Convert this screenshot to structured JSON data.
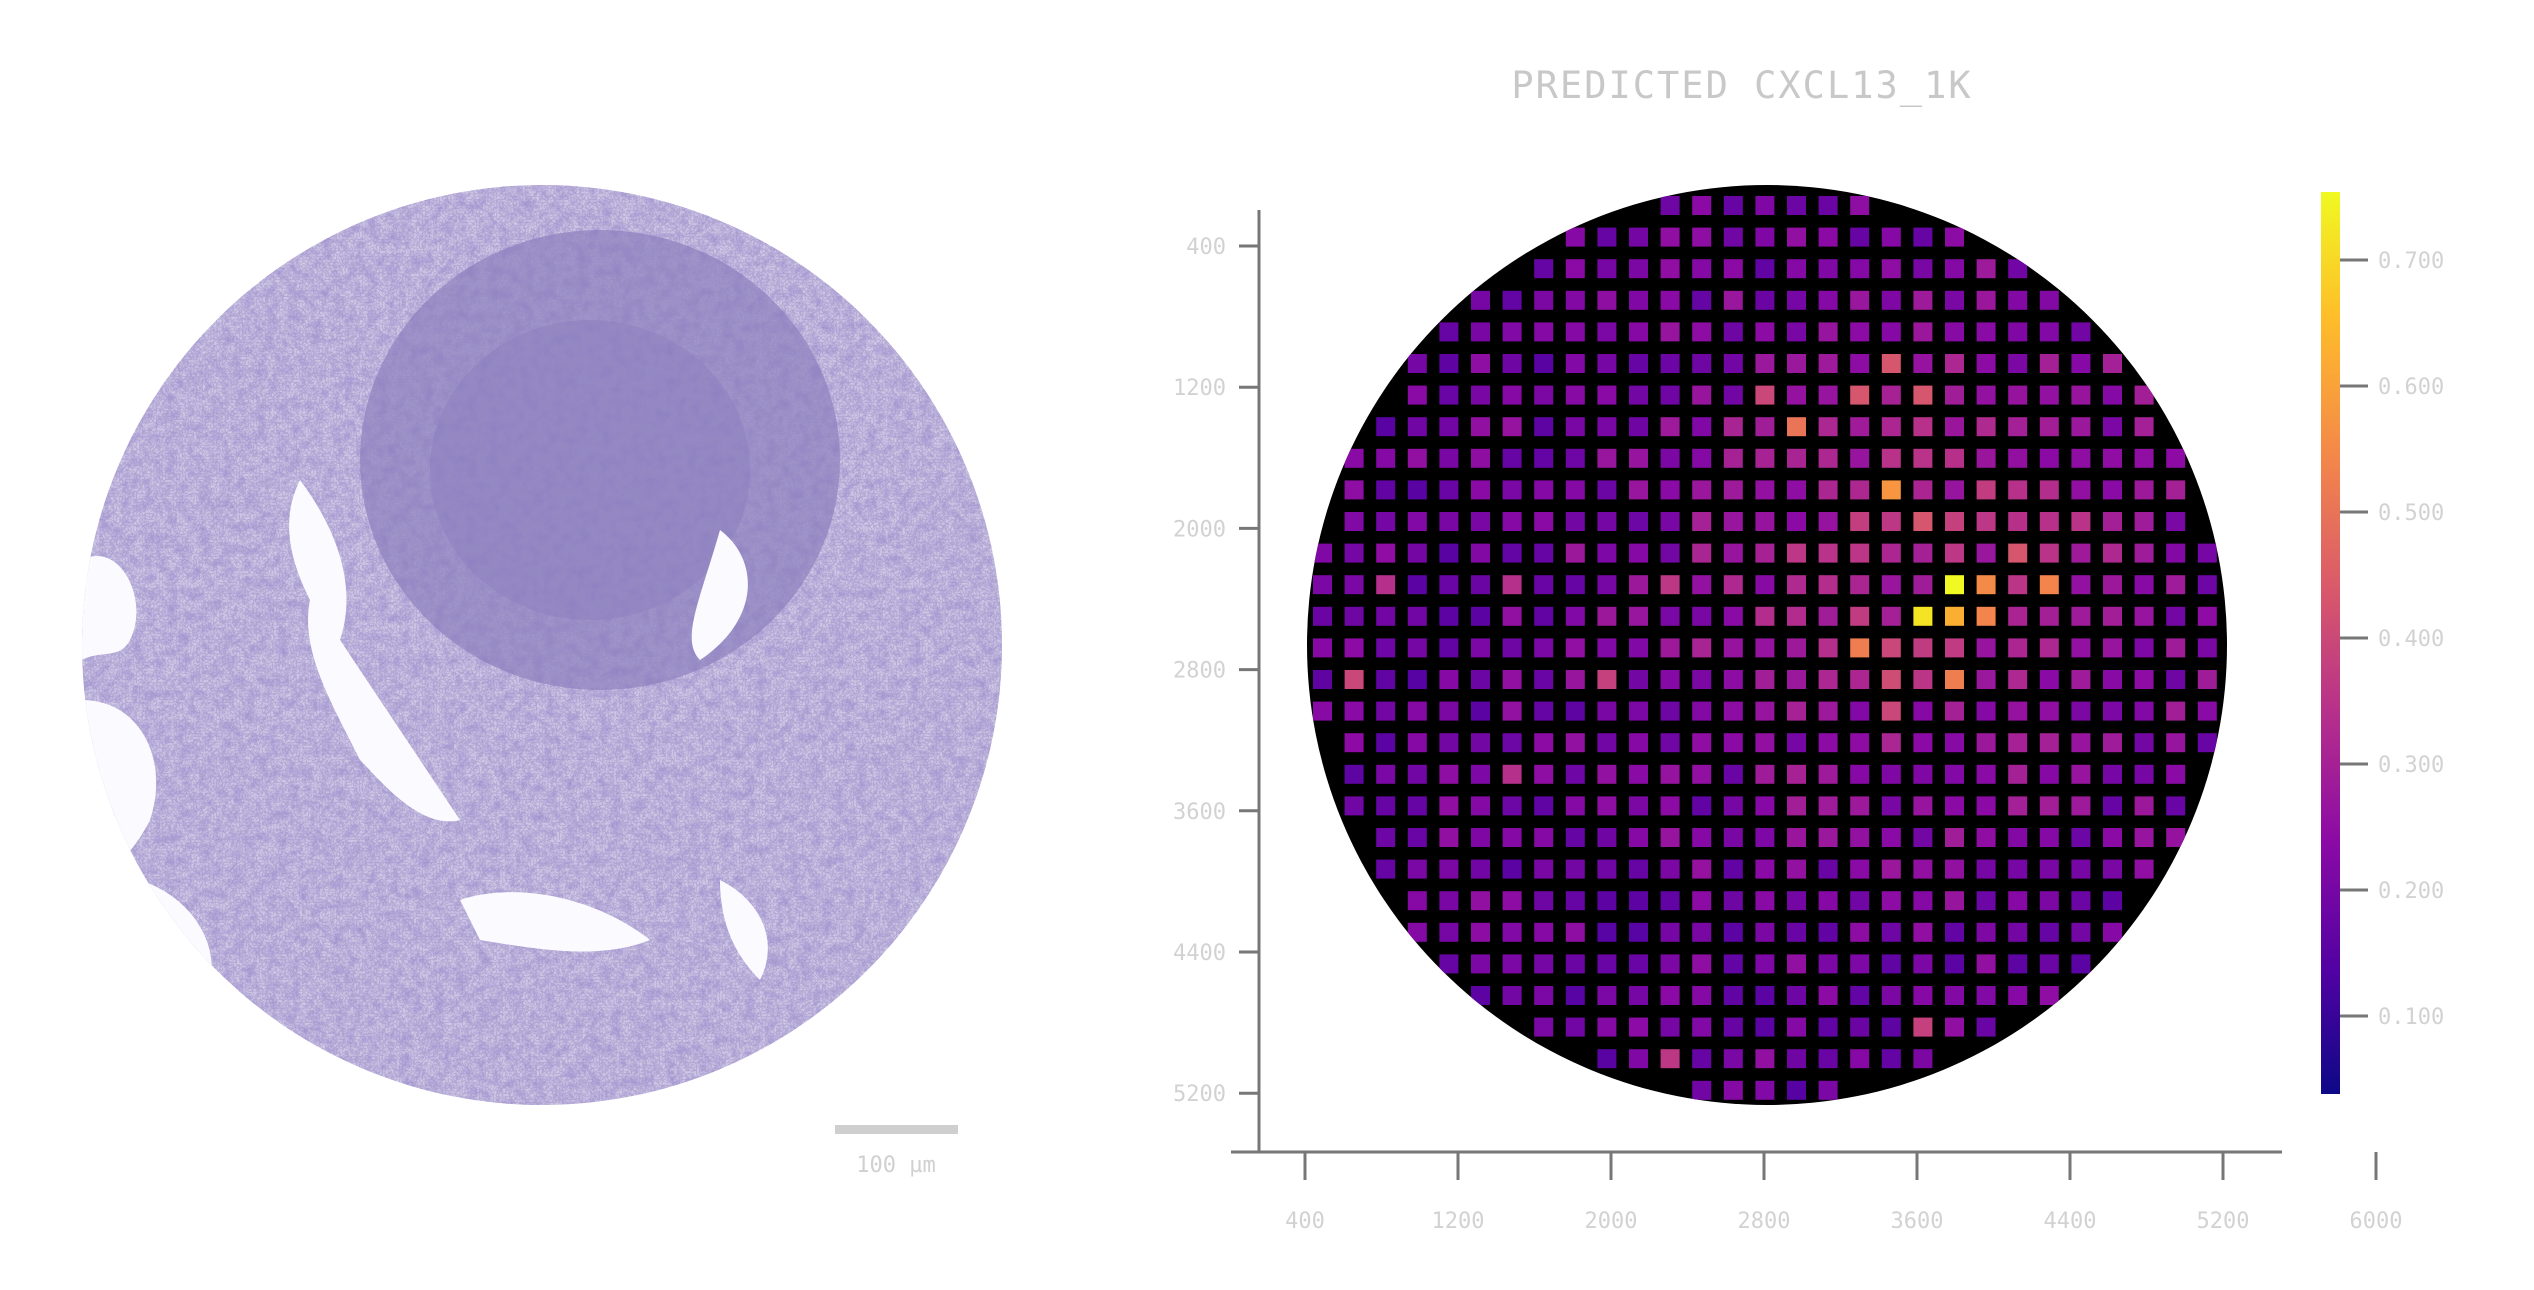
{
  "figure": {
    "title": "PREDICTED CXCL13_1K",
    "scale_bar_label": "100 µm"
  },
  "tissue_panel": {
    "stain_color": "#8b7fbf",
    "background_tissue_color": "#c9c2e2",
    "dense_region_color": "#6f63aa"
  },
  "chart_data": {
    "type": "heatmap",
    "title": "PREDICTED CXCL13_1K",
    "x_ticks": [
      "400",
      "1200",
      "2000",
      "2800",
      "3600",
      "4400",
      "5200",
      "6000"
    ],
    "y_ticks": [
      "400",
      "1200",
      "2000",
      "2800",
      "3600",
      "4400",
      "5200"
    ],
    "colorbar_ticks": [
      "0.100",
      "0.200",
      "0.300",
      "0.400",
      "0.500",
      "0.600",
      "0.700"
    ],
    "colormap": "plasma",
    "colormap_stops": [
      "#0d0887",
      "#5302a3",
      "#8b0aa5",
      "#b83289",
      "#db5c68",
      "#f48849",
      "#febd2a",
      "#f0f921"
    ],
    "grid": {
      "rows": 30,
      "cols": 30
    },
    "hotspots": [
      {
        "row": 12,
        "col": 20,
        "value": 1.0
      },
      {
        "row": 13,
        "col": 19,
        "value": 0.95
      },
      {
        "row": 13,
        "col": 20,
        "value": 0.82
      },
      {
        "row": 12,
        "col": 21,
        "value": 0.72
      },
      {
        "row": 12,
        "col": 23,
        "value": 0.7
      },
      {
        "row": 13,
        "col": 21,
        "value": 0.7
      },
      {
        "row": 9,
        "col": 18,
        "value": 0.75
      },
      {
        "row": 7,
        "col": 15,
        "value": 0.65
      },
      {
        "row": 14,
        "col": 17,
        "value": 0.68
      },
      {
        "row": 15,
        "col": 20,
        "value": 0.68
      },
      {
        "row": 5,
        "col": 18,
        "value": 0.55
      },
      {
        "row": 6,
        "col": 17,
        "value": 0.55
      },
      {
        "row": 6,
        "col": 19,
        "value": 0.55
      },
      {
        "row": 6,
        "col": 14,
        "value": 0.5
      },
      {
        "row": 11,
        "col": 22,
        "value": 0.55
      },
      {
        "row": 10,
        "col": 19,
        "value": 0.55
      },
      {
        "row": 15,
        "col": 18,
        "value": 0.52
      },
      {
        "row": 16,
        "col": 18,
        "value": 0.5
      },
      {
        "row": 14,
        "col": 18,
        "value": 0.5
      },
      {
        "row": 15,
        "col": 1,
        "value": 0.5
      },
      {
        "row": 15,
        "col": 9,
        "value": 0.48
      },
      {
        "row": 12,
        "col": 11,
        "value": 0.45
      },
      {
        "row": 12,
        "col": 6,
        "value": 0.42
      },
      {
        "row": 12,
        "col": 2,
        "value": 0.42
      },
      {
        "row": 18,
        "col": 6,
        "value": 0.42
      },
      {
        "row": 27,
        "col": 11,
        "value": 0.45
      },
      {
        "row": 26,
        "col": 19,
        "value": 0.48
      }
    ],
    "background_level": 0.15
  }
}
